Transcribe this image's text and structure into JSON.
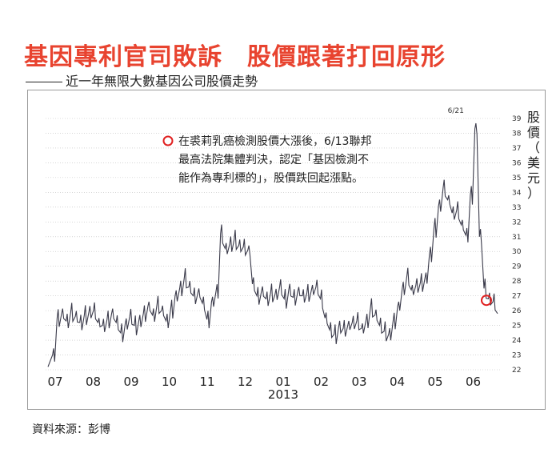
{
  "header": {
    "title": "基因專利官司敗訴　股價跟著打回原形",
    "subtitle": "近一年無限大數基因公司股價走勢"
  },
  "footer": {
    "source": "資料來源：彭博"
  },
  "colors": {
    "title": "#e8432f",
    "line": "#3a3a4a",
    "marker": "#e02020"
  },
  "chart_data": {
    "type": "line",
    "title": "近一年無限大數基因公司股價走勢",
    "ylabel": "股價（美元）",
    "ylabel_lines": [
      "股",
      "價",
      "（",
      "美",
      "元",
      "）"
    ],
    "xlabel": "",
    "ylim": [
      22,
      39
    ],
    "yticks": [
      "22",
      "23",
      "24",
      "25",
      "26",
      "27",
      "28",
      "29",
      "30",
      "31",
      "32",
      "33",
      "34",
      "35",
      "36",
      "37",
      "38",
      "39"
    ],
    "x_tick_labels": [
      "07",
      "08",
      "09",
      "10",
      "11",
      "12",
      "01",
      "02",
      "03",
      "04",
      "05",
      "06"
    ],
    "year_label": "2013",
    "grid": true,
    "annotation_peak": "6/21",
    "annotation_text_lines": [
      "在裘莉乳癌檢測股價大漲後，6/13聯邦",
      "最高法院集體判決，認定「基因檢測不",
      "能作為專利標的」，股價跌回起漲點。"
    ],
    "marker_value": 26.7,
    "series": [
      {
        "values": [
          22.2,
          23.0,
          25.5,
          25.8,
          25.3,
          25.9,
          25.6,
          25.2,
          25.7,
          25.9,
          26.0,
          25.2,
          25.0,
          25.4,
          25.8,
          25.2,
          24.5,
          25.1,
          25.6,
          25.0,
          25.3,
          25.8,
          26.3,
          25.7,
          26.4,
          26.0,
          25.3,
          26.1,
          27.0,
          27.5,
          28.2,
          27.6,
          27.0,
          27.2,
          26.5,
          25.4,
          26.6,
          27.3,
          31.2,
          30.2,
          30.5,
          30.8,
          30.4,
          30.3,
          30.1,
          27.8,
          27.0,
          27.3,
          26.8,
          27.2,
          27.1,
          27.6,
          26.8,
          27.4,
          26.9,
          27.3,
          27.0,
          27.2,
          27.4,
          27.6,
          26.8,
          25.5,
          24.7,
          24.4,
          24.9,
          24.8,
          25.0,
          25.2,
          25.3,
          24.8,
          25.3,
          26.2,
          25.7,
          25.0,
          24.6,
          24.4,
          25.3,
          26.3,
          27.5,
          28.3,
          27.4,
          27.7,
          27.9,
          28.2,
          29.8,
          31.6,
          33.1,
          34.3,
          33.5,
          32.6,
          32.8,
          31.8,
          31.1,
          33.8,
          38.3,
          31.0,
          27.5,
          26.8,
          26.6,
          25.8
        ]
      }
    ]
  }
}
